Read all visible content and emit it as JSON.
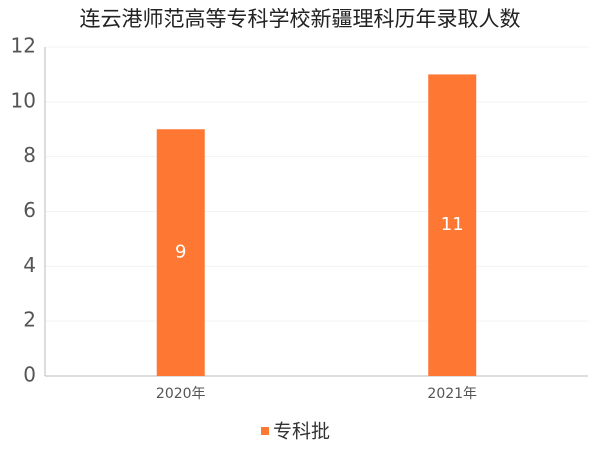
{
  "chart_data": {
    "type": "bar",
    "title": "连云港师范高等专科学校新疆理科历年录取人数",
    "categories": [
      "2020年",
      "2021年"
    ],
    "series": [
      {
        "name": "专科批",
        "color": "#fe7733",
        "values": [
          9,
          11
        ]
      }
    ],
    "ylim": [
      0,
      12
    ],
    "yticks": [
      0,
      2,
      4,
      6,
      8,
      10,
      12
    ],
    "grid": true,
    "data_labels": true,
    "legend": "bottom"
  }
}
